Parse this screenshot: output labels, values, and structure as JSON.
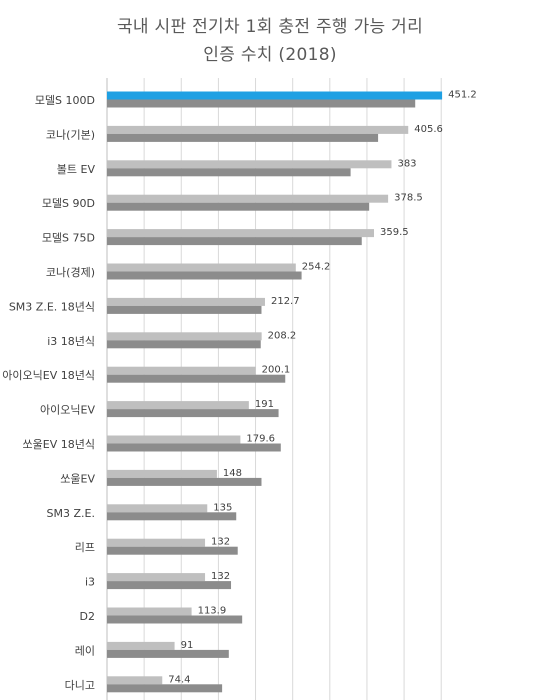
{
  "title": "국내 시판 전기차 1회 충전 주행 가능 거리",
  "subtitle": "인증 수치 (2018)",
  "colors": {
    "highlight": "#1fa0e3",
    "primary": "#bfbfbf",
    "secondary": "#8c8c8c",
    "grid": "#d9d9d9",
    "text": "#404040"
  },
  "chart_data": {
    "type": "bar",
    "orientation": "horizontal",
    "title": "국내 시판 전기차 1회 충전 주행 가능 거리",
    "subtitle": "인증 수치 (2018)",
    "categories": [
      "모델S 100D",
      "코나(기본)",
      "볼트 EV",
      "모델S 90D",
      "모델S 75D",
      "코나(경제)",
      "SM3 Z.E. 18년식",
      "i3 18년식",
      "아이오닉EV 18년식",
      "아이오닉EV",
      "쏘울EV 18년식",
      "쏘울EV",
      "SM3 Z.E.",
      "리프",
      "i3",
      "D2",
      "레이",
      "다니고"
    ],
    "series": [
      {
        "values": [
          451.2,
          405.6,
          383,
          378.5,
          359.5,
          254.2,
          212.7,
          208.2,
          200.1,
          191,
          179.6,
          148,
          135,
          132,
          132,
          113.9,
          91,
          74.4
        ]
      },
      {
        "values": [
          415,
          365,
          328,
          353,
          343,
          262,
          208,
          207,
          240,
          231,
          234,
          208,
          174,
          176,
          167,
          182,
          164,
          155
        ]
      }
    ],
    "data_labels": [
      "451.2",
      "405.6",
      "383",
      "378.5",
      "359.5",
      "254.2",
      "212.7",
      "208.2",
      "200.1",
      "191",
      "179.6",
      "148",
      "135",
      "132",
      "132",
      "113.9",
      "91",
      "74.4"
    ],
    "highlight_category": "모델S 100D",
    "xlim": [
      0,
      470
    ],
    "grid": true,
    "legend": "none"
  }
}
